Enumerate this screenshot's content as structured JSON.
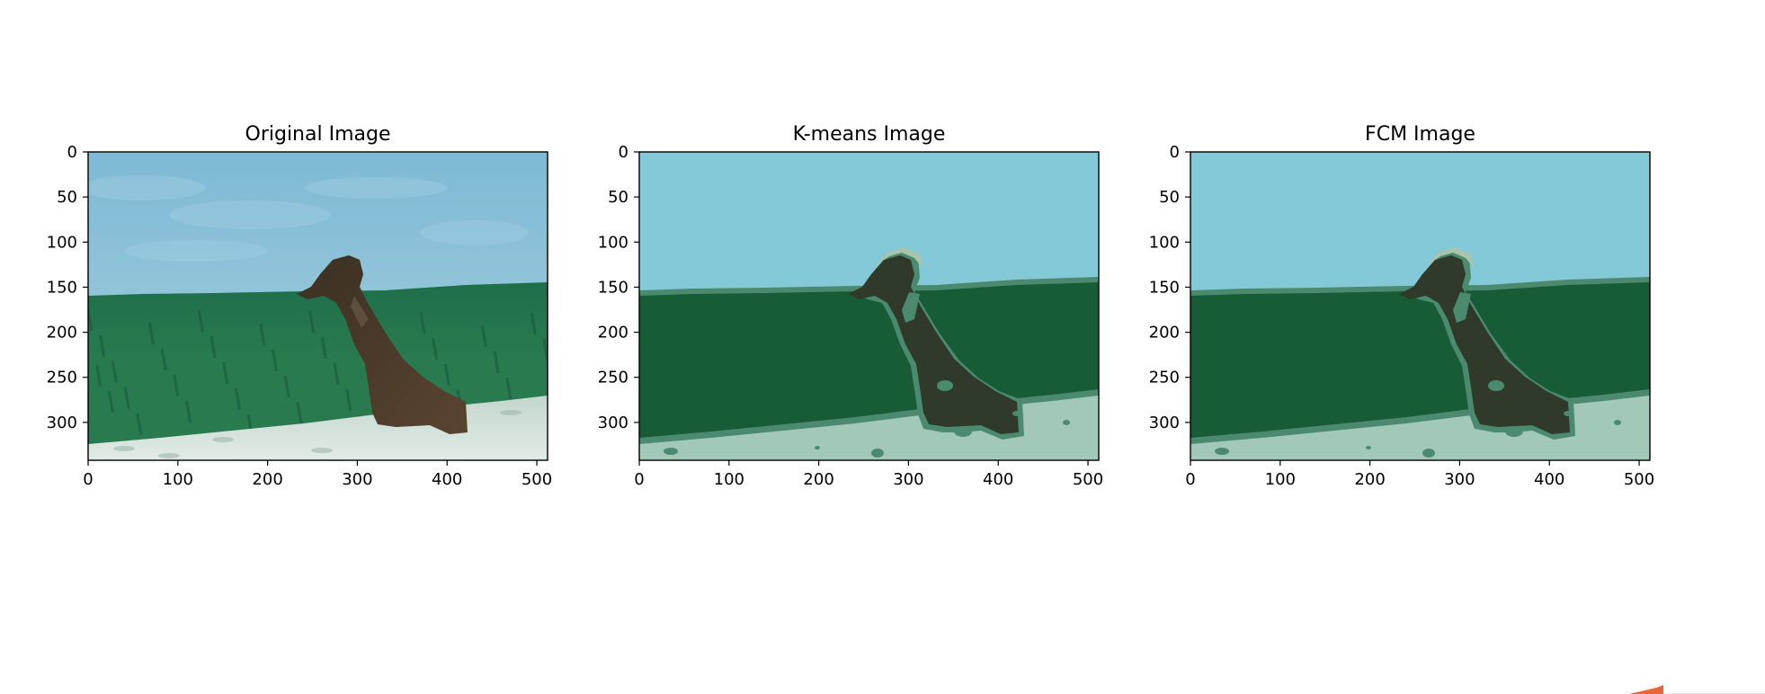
{
  "chart_data": [
    {
      "type": "image",
      "title": "Original Image",
      "xlim": [
        0,
        512
      ],
      "ylim": [
        342,
        0
      ],
      "xticks": [
        "0",
        "100",
        "200",
        "300",
        "400",
        "500"
      ],
      "yticks": [
        "0",
        "50",
        "100",
        "150",
        "200",
        "250",
        "300"
      ],
      "palette": {
        "sky": "#8cc3d8",
        "grass": "#1f6a45",
        "ground": "#cddbd3",
        "dog": "#3f3527"
      }
    },
    {
      "type": "image",
      "title": "K-means Image",
      "xlim": [
        0,
        512
      ],
      "ylim": [
        342,
        0
      ],
      "xticks": [
        "0",
        "100",
        "200",
        "300",
        "400",
        "500"
      ],
      "yticks": [
        "0",
        "50",
        "100",
        "150",
        "200",
        "250",
        "300"
      ],
      "palette": {
        "sky": "#83c9d7",
        "grass": "#175b37",
        "ground": "#a2c9b8",
        "dog": "#2f3a2a",
        "edge": "#4c8a70"
      }
    },
    {
      "type": "image",
      "title": "FCM Image",
      "xlim": [
        0,
        512
      ],
      "ylim": [
        342,
        0
      ],
      "xticks": [
        "0",
        "100",
        "200",
        "300",
        "400",
        "500"
      ],
      "yticks": [
        "0",
        "50",
        "100",
        "150",
        "200",
        "250",
        "300"
      ],
      "palette": {
        "sky": "#83c9d7",
        "grass": "#175b37",
        "ground": "#a2c9b8",
        "dog": "#2f3a2a",
        "edge": "#4c8a70"
      }
    }
  ]
}
